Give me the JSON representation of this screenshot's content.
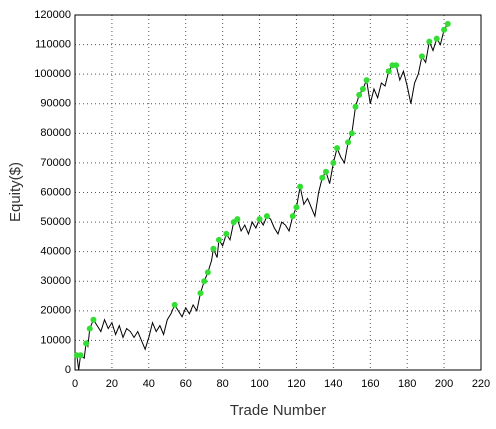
{
  "chart_data": {
    "type": "line",
    "x_label": "Trade Number",
    "y_label": "Equity($)",
    "xlim": [
      0,
      220
    ],
    "xticks": [
      0,
      20,
      40,
      60,
      80,
      100,
      120,
      140,
      160,
      180,
      200,
      220
    ],
    "ylim": [
      0,
      120000
    ],
    "yticks": [
      0,
      10000,
      20000,
      30000,
      40000,
      50000,
      60000,
      70000,
      80000,
      90000,
      100000,
      110000,
      120000
    ],
    "grid": true,
    "series": [
      {
        "color": "#000000",
        "marker": false,
        "x": [
          0,
          1,
          2,
          3,
          5,
          6,
          7,
          8,
          10,
          12,
          14,
          16,
          18,
          20,
          22,
          24,
          26,
          28,
          30,
          32,
          34,
          36,
          38,
          40,
          42,
          44,
          46,
          48,
          50,
          52,
          54,
          56,
          58,
          60,
          62,
          64,
          66,
          68,
          70,
          72,
          74,
          75,
          77,
          78,
          80,
          82,
          84,
          86,
          88,
          90,
          92,
          94,
          96,
          98,
          100,
          102,
          104,
          106,
          108,
          110,
          112,
          114,
          116,
          118,
          120,
          122,
          124,
          126,
          128,
          130,
          132,
          134,
          136,
          138,
          140,
          142,
          144,
          146,
          148,
          150,
          152,
          154,
          156,
          158,
          160,
          162,
          164,
          166,
          168,
          170,
          172,
          174,
          176,
          178,
          180,
          182,
          184,
          186,
          188,
          190,
          192,
          194,
          196,
          198,
          200,
          202
        ],
        "values": [
          4000,
          5000,
          0,
          5000,
          4000,
          9000,
          8000,
          14000,
          17000,
          15000,
          13000,
          17000,
          14000,
          16000,
          12000,
          15000,
          11000,
          14000,
          13000,
          11000,
          13000,
          10000,
          7000,
          11000,
          16000,
          13000,
          15000,
          12000,
          17000,
          19000,
          22000,
          20000,
          18000,
          21000,
          19000,
          22000,
          20000,
          26000,
          30000,
          33000,
          37000,
          41000,
          38000,
          44000,
          42000,
          46000,
          44000,
          50000,
          51000,
          47000,
          49000,
          46000,
          50000,
          48000,
          51000,
          49000,
          52000,
          51000,
          48000,
          46000,
          50000,
          49000,
          47000,
          52000,
          55000,
          62000,
          56000,
          58000,
          55000,
          52000,
          60000,
          65000,
          67000,
          63000,
          70000,
          75000,
          72000,
          70000,
          77000,
          80000,
          89000,
          93000,
          95000,
          98000,
          90000,
          95000,
          92000,
          97000,
          96000,
          101000,
          103000,
          103000,
          98000,
          101000,
          96000,
          90000,
          97000,
          100000,
          106000,
          104000,
          111000,
          108000,
          112000,
          110000,
          115000,
          117000
        ]
      },
      {
        "color": "#33dd33",
        "marker": true,
        "x": [
          1,
          3,
          6,
          8,
          10,
          54,
          68,
          70,
          72,
          75,
          78,
          82,
          86,
          88,
          100,
          104,
          118,
          120,
          122,
          134,
          136,
          140,
          142,
          148,
          150,
          152,
          154,
          156,
          158,
          170,
          172,
          174,
          188,
          192,
          196,
          200,
          202
        ],
        "values": [
          5000,
          5000,
          9000,
          14000,
          17000,
          22000,
          26000,
          30000,
          33000,
          41000,
          44000,
          46000,
          50000,
          51000,
          51000,
          52000,
          52000,
          55000,
          62000,
          65000,
          67000,
          70000,
          75000,
          77000,
          80000,
          89000,
          93000,
          95000,
          98000,
          101000,
          103000,
          103000,
          106000,
          111000,
          112000,
          115000,
          117000
        ]
      }
    ]
  }
}
